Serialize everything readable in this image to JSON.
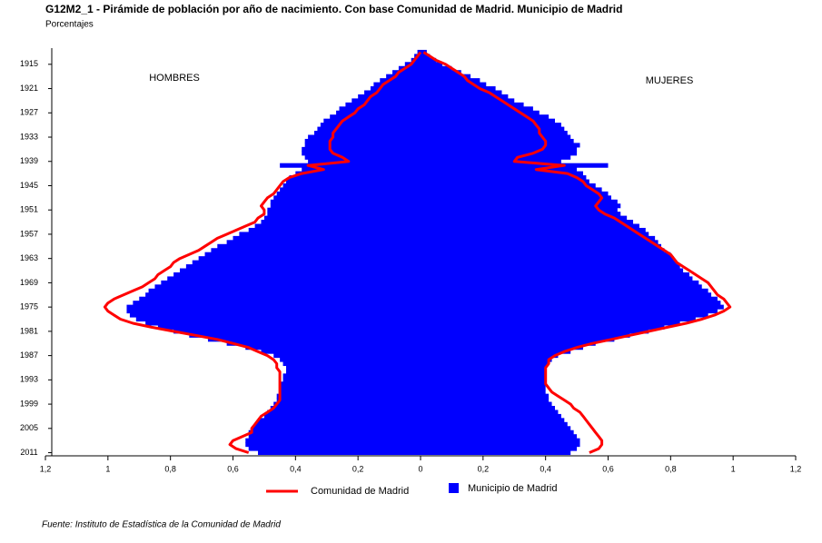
{
  "chart_data": {
    "type": "pyramid",
    "title": "G12M2_1 - Pirámide de población por año de nacimiento. Con base Comunidad de Madrid.  Municipio de Madrid",
    "subtitle": "Porcentajes",
    "left_label": "HOMBRES",
    "right_label": "MUJERES",
    "source": "Fuente: Instituto de Estadística de la Comunidad de Madrid",
    "y": [
      1912,
      1913,
      1914,
      1915,
      1916,
      1917,
      1918,
      1919,
      1920,
      1921,
      1922,
      1923,
      1924,
      1925,
      1926,
      1927,
      1928,
      1929,
      1930,
      1931,
      1932,
      1933,
      1934,
      1935,
      1936,
      1937,
      1938,
      1939,
      1940,
      1941,
      1942,
      1943,
      1944,
      1945,
      1946,
      1947,
      1948,
      1949,
      1950,
      1951,
      1952,
      1953,
      1954,
      1955,
      1956,
      1957,
      1958,
      1959,
      1960,
      1961,
      1962,
      1963,
      1964,
      1965,
      1966,
      1967,
      1968,
      1969,
      1970,
      1971,
      1972,
      1973,
      1974,
      1975,
      1976,
      1977,
      1978,
      1979,
      1980,
      1981,
      1982,
      1983,
      1984,
      1985,
      1986,
      1987,
      1988,
      1989,
      1990,
      1991,
      1992,
      1993,
      1994,
      1995,
      1996,
      1997,
      1998,
      1999,
      2000,
      2001,
      2002,
      2003,
      2004,
      2005,
      2006,
      2007,
      2008,
      2009,
      2010,
      2011
    ],
    "ylim": [
      1911,
      2012
    ],
    "yticks": [
      1915,
      1921,
      1927,
      1933,
      1939,
      1945,
      1951,
      1957,
      1963,
      1969,
      1975,
      1981,
      1987,
      1993,
      1999,
      2005,
      2011
    ],
    "xlim": [
      -1.2,
      1.2
    ],
    "xticks": [
      {
        "value": -1.2,
        "label": "1,2"
      },
      {
        "value": -1,
        "label": "1"
      },
      {
        "value": -0.8,
        "label": "0,8"
      },
      {
        "value": -0.6,
        "label": "0,6"
      },
      {
        "value": -0.4,
        "label": "0,4"
      },
      {
        "value": -0.2,
        "label": "0,2"
      },
      0,
      {
        "value": 0.2,
        "label": "0,2"
      },
      {
        "value": 0.4,
        "label": "0,4"
      },
      {
        "value": 0.6,
        "label": "0,6"
      },
      {
        "value": 0.8,
        "label": "0,8"
      },
      {
        "value": 1,
        "label": "1"
      },
      {
        "value": 1.2,
        "label": "1,2"
      }
    ],
    "series": [
      {
        "name": "Comunidad de Madrid",
        "color": "#ff0000",
        "style": "line",
        "men": [
          0.0,
          0.01,
          0.02,
          0.03,
          0.05,
          0.07,
          0.08,
          0.1,
          0.12,
          0.13,
          0.14,
          0.16,
          0.17,
          0.18,
          0.2,
          0.21,
          0.23,
          0.25,
          0.26,
          0.27,
          0.28,
          0.28,
          0.29,
          0.29,
          0.29,
          0.28,
          0.25,
          0.23,
          0.36,
          0.31,
          0.38,
          0.42,
          0.44,
          0.45,
          0.46,
          0.47,
          0.49,
          0.5,
          0.51,
          0.5,
          0.5,
          0.52,
          0.53,
          0.56,
          0.59,
          0.62,
          0.65,
          0.67,
          0.69,
          0.71,
          0.74,
          0.77,
          0.79,
          0.8,
          0.82,
          0.84,
          0.85,
          0.87,
          0.89,
          0.92,
          0.95,
          0.98,
          1.0,
          1.01,
          1.0,
          0.98,
          0.96,
          0.92,
          0.86,
          0.79,
          0.72,
          0.65,
          0.6,
          0.55,
          0.52,
          0.49,
          0.47,
          0.46,
          0.46,
          0.45,
          0.45,
          0.45,
          0.45,
          0.45,
          0.45,
          0.45,
          0.45,
          0.46,
          0.47,
          0.49,
          0.51,
          0.52,
          0.53,
          0.54,
          0.54,
          0.57,
          0.6,
          0.61,
          0.59,
          0.55
        ],
        "women": [
          0.01,
          0.03,
          0.05,
          0.08,
          0.1,
          0.12,
          0.14,
          0.15,
          0.17,
          0.19,
          0.22,
          0.24,
          0.26,
          0.28,
          0.3,
          0.32,
          0.34,
          0.36,
          0.37,
          0.38,
          0.38,
          0.39,
          0.4,
          0.4,
          0.39,
          0.36,
          0.31,
          0.3,
          0.46,
          0.37,
          0.47,
          0.5,
          0.52,
          0.53,
          0.55,
          0.57,
          0.58,
          0.57,
          0.56,
          0.57,
          0.59,
          0.62,
          0.64,
          0.66,
          0.68,
          0.7,
          0.72,
          0.74,
          0.76,
          0.78,
          0.8,
          0.81,
          0.82,
          0.84,
          0.86,
          0.88,
          0.9,
          0.92,
          0.93,
          0.94,
          0.95,
          0.97,
          0.98,
          0.99,
          0.97,
          0.94,
          0.9,
          0.85,
          0.79,
          0.73,
          0.67,
          0.61,
          0.55,
          0.5,
          0.46,
          0.43,
          0.41,
          0.41,
          0.4,
          0.4,
          0.4,
          0.4,
          0.4,
          0.41,
          0.42,
          0.44,
          0.46,
          0.48,
          0.49,
          0.51,
          0.52,
          0.53,
          0.54,
          0.55,
          0.56,
          0.57,
          0.58,
          0.58,
          0.57,
          0.54
        ]
      },
      {
        "name": "Municipio de Madrid",
        "color": "#0000ff",
        "style": "bar",
        "men": [
          0.01,
          0.02,
          0.03,
          0.05,
          0.07,
          0.09,
          0.11,
          0.13,
          0.15,
          0.16,
          0.18,
          0.2,
          0.22,
          0.24,
          0.26,
          0.27,
          0.29,
          0.31,
          0.32,
          0.33,
          0.34,
          0.36,
          0.37,
          0.37,
          0.38,
          0.38,
          0.37,
          0.36,
          0.45,
          0.38,
          0.4,
          0.42,
          0.43,
          0.44,
          0.45,
          0.46,
          0.47,
          0.48,
          0.48,
          0.49,
          0.49,
          0.5,
          0.51,
          0.53,
          0.55,
          0.58,
          0.6,
          0.62,
          0.65,
          0.67,
          0.69,
          0.71,
          0.73,
          0.75,
          0.77,
          0.79,
          0.81,
          0.83,
          0.85,
          0.87,
          0.88,
          0.9,
          0.92,
          0.94,
          0.94,
          0.93,
          0.91,
          0.88,
          0.84,
          0.79,
          0.74,
          0.68,
          0.62,
          0.56,
          0.51,
          0.47,
          0.45,
          0.44,
          0.43,
          0.43,
          0.44,
          0.44,
          0.45,
          0.45,
          0.45,
          0.46,
          0.46,
          0.47,
          0.48,
          0.49,
          0.5,
          0.52,
          0.53,
          0.54,
          0.55,
          0.55,
          0.56,
          0.56,
          0.55,
          0.52
        ],
        "women": [
          0.02,
          0.03,
          0.05,
          0.07,
          0.1,
          0.13,
          0.16,
          0.19,
          0.21,
          0.24,
          0.26,
          0.28,
          0.3,
          0.33,
          0.36,
          0.38,
          0.41,
          0.43,
          0.45,
          0.46,
          0.47,
          0.48,
          0.49,
          0.51,
          0.5,
          0.5,
          0.48,
          0.45,
          0.6,
          0.5,
          0.52,
          0.53,
          0.54,
          0.56,
          0.58,
          0.6,
          0.61,
          0.63,
          0.64,
          0.63,
          0.64,
          0.66,
          0.68,
          0.7,
          0.72,
          0.73,
          0.75,
          0.76,
          0.77,
          0.78,
          0.8,
          0.81,
          0.82,
          0.83,
          0.84,
          0.86,
          0.87,
          0.89,
          0.9,
          0.92,
          0.93,
          0.95,
          0.96,
          0.97,
          0.95,
          0.92,
          0.88,
          0.83,
          0.78,
          0.73,
          0.67,
          0.62,
          0.56,
          0.52,
          0.48,
          0.44,
          0.42,
          0.41,
          0.4,
          0.4,
          0.4,
          0.4,
          0.4,
          0.4,
          0.4,
          0.41,
          0.41,
          0.42,
          0.43,
          0.44,
          0.45,
          0.46,
          0.47,
          0.48,
          0.49,
          0.5,
          0.51,
          0.51,
          0.5,
          0.48
        ]
      }
    ]
  }
}
